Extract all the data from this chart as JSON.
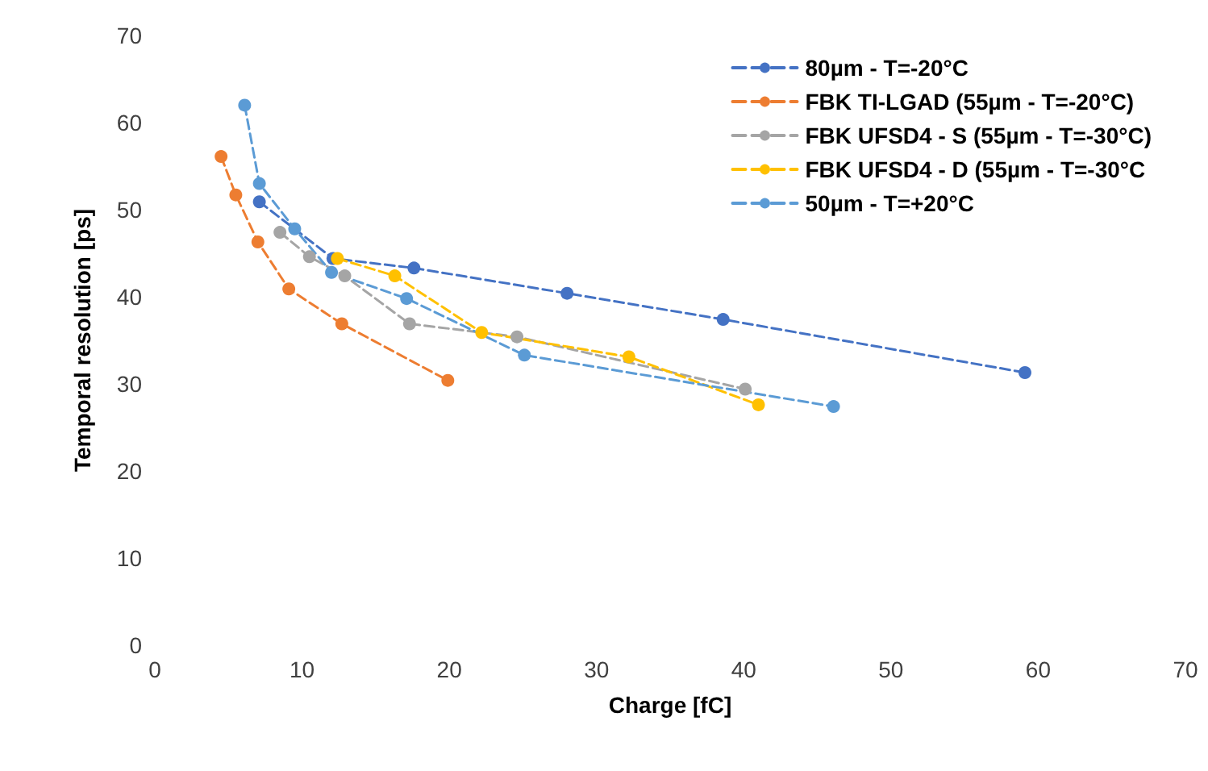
{
  "chart_data": {
    "type": "line",
    "xlabel": "Charge [fC]",
    "ylabel": "Temporal resolution [ps]",
    "xlim": [
      0,
      70
    ],
    "xticks": [
      0,
      10,
      20,
      30,
      40,
      50,
      60,
      70
    ],
    "ylim": [
      0,
      70
    ],
    "yticks": [
      0,
      10,
      20,
      30,
      40,
      50,
      60,
      70
    ],
    "grid": false,
    "legend": "top right",
    "marker": "circle",
    "line_style": "dashed",
    "series": [
      {
        "name": "80µm - T=-20°C",
        "color": "#4472c4",
        "x": [
          7.1,
          12.1,
          17.6,
          28.0,
          38.6,
          59.1
        ],
        "values": [
          50.9,
          44.4,
          43.3,
          40.4,
          37.4,
          31.3
        ]
      },
      {
        "name": "FBK TI-LGAD (55µm - T=-20°C)",
        "color": "#ed7d31",
        "x": [
          4.5,
          5.5,
          7.0,
          9.1,
          12.7,
          19.9
        ],
        "values": [
          56.1,
          51.7,
          46.3,
          40.9,
          36.9,
          30.4
        ]
      },
      {
        "name": "FBK UFSD4 - S (55µm - T=-30°C)",
        "color": "#a5a5a5",
        "x": [
          8.5,
          10.5,
          12.9,
          17.3,
          24.6,
          40.1
        ],
        "values": [
          47.4,
          44.6,
          42.4,
          36.9,
          35.4,
          29.4
        ]
      },
      {
        "name": "FBK UFSD4 - D (55µm - T=-30°C",
        "color": "#ffc000",
        "x": [
          12.4,
          16.3,
          22.2,
          32.2,
          41.0
        ],
        "values": [
          44.4,
          42.4,
          35.9,
          33.1,
          27.6
        ]
      },
      {
        "name": "50µm - T=+20°C",
        "color": "#5b9bd5",
        "x": [
          6.1,
          7.1,
          9.5,
          12.0,
          17.1,
          25.1,
          46.1
        ],
        "values": [
          62.0,
          53.0,
          47.8,
          42.8,
          39.8,
          33.3,
          27.4
        ]
      }
    ]
  }
}
